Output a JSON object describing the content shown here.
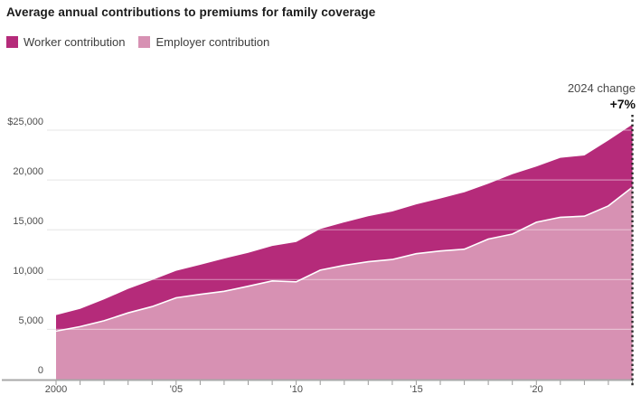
{
  "title": "Average annual contributions to premiums for family coverage",
  "legend": {
    "items": [
      {
        "label": "Worker contribution",
        "color": "#b52b7a"
      },
      {
        "label": "Employer contribution",
        "color": "#d791b3"
      }
    ]
  },
  "annotation": {
    "label": "2024 change",
    "value": "+7%"
  },
  "colors": {
    "worker": "#b52b7a",
    "employer": "#d791b3",
    "grid": "#e5e5e5",
    "grid_overlay": "rgba(255,255,255,0.42)",
    "separator": "#ffffff",
    "axis": "#a8a8a8",
    "tick": "#999999",
    "dotted_line": "#2b2b2b",
    "title_text": "#1a1a1a",
    "axis_label_text": "#4d4d4d",
    "legend_text": "#3d3d3d",
    "annotation_label_text": "#4a4a4a",
    "annotation_value_text": "#111111"
  },
  "chart_data": {
    "type": "area",
    "stacked": true,
    "title": "Average annual contributions to premiums for family coverage",
    "x": [
      2000,
      2001,
      2002,
      2003,
      2004,
      2005,
      2006,
      2007,
      2008,
      2009,
      2010,
      2011,
      2012,
      2013,
      2014,
      2015,
      2016,
      2017,
      2018,
      2019,
      2020,
      2021,
      2022,
      2023,
      2024
    ],
    "series": [
      {
        "name": "Employer contribution",
        "color": "#d791b3",
        "values": [
          4819,
          5274,
          5866,
          6656,
          7289,
          8167,
          8508,
          8824,
          9325,
          9860,
          9773,
          10944,
          11429,
          11786,
          12011,
          12591,
          12865,
          13049,
          14069,
          14561,
          15754,
          16253,
          16357,
          17393,
          19276
        ]
      },
      {
        "name": "Worker contribution",
        "color": "#b52b7a",
        "values": [
          1619,
          1787,
          2137,
          2412,
          2661,
          2713,
          2973,
          3281,
          3354,
          3515,
          3997,
          4129,
          4316,
          4565,
          4823,
          4955,
          5277,
          5714,
          5547,
          6015,
          5588,
          5969,
          6106,
          6575,
          6296
        ]
      }
    ],
    "ylim": [
      0,
      25000
    ],
    "yticks": [
      {
        "v": 0,
        "label": "0"
      },
      {
        "v": 5000,
        "label": "5,000"
      },
      {
        "v": 10000,
        "label": "10,000"
      },
      {
        "v": 15000,
        "label": "15,000"
      },
      {
        "v": 20000,
        "label": "20,000"
      },
      {
        "v": 25000,
        "label": "$25,000"
      }
    ],
    "xticks": [
      {
        "v": 2000,
        "label": "2000"
      },
      {
        "v": 2005,
        "label": "’05"
      },
      {
        "v": 2010,
        "label": "’10"
      },
      {
        "v": 2015,
        "label": "’15"
      },
      {
        "v": 2020,
        "label": "’20"
      }
    ],
    "minor_xticks": "every-year",
    "grid": "horizontal",
    "legend_position": "top-left",
    "annotation": {
      "text": "2024 change",
      "value": "+7%",
      "at_x": 2024
    }
  }
}
